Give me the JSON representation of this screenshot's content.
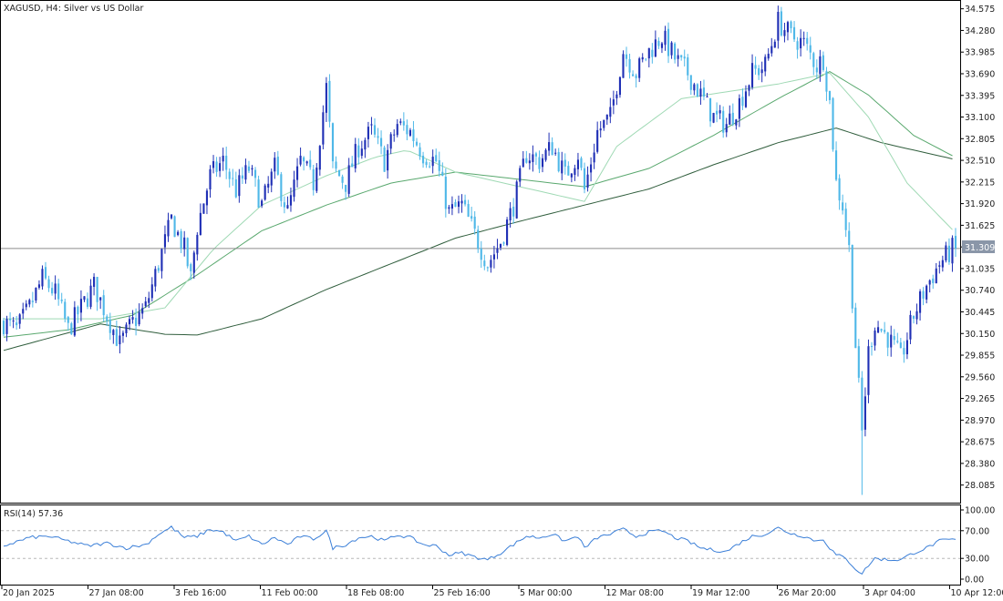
{
  "chart_data": [
    {
      "type": "candlestick",
      "title": "XAGUSD, H4:  Silver vs US Dollar",
      "current_price": "31.309",
      "y_ticks": [
        "34.575",
        "34.280",
        "33.985",
        "33.690",
        "33.395",
        "33.100",
        "32.805",
        "32.510",
        "32.215",
        "31.920",
        "31.625",
        "31.330",
        "31.035",
        "30.740",
        "30.445",
        "30.150",
        "29.855",
        "29.560",
        "29.265",
        "28.970",
        "28.675",
        "28.380",
        "28.085"
      ],
      "ylim": [
        27.87,
        34.67
      ],
      "x_labels": [
        "20 Jan 2025",
        "27 Jan 08:00",
        "3 Feb 16:00",
        "11 Feb 00:00",
        "18 Feb 08:00",
        "25 Feb 16:00",
        "5 Mar 00:00",
        "12 Mar 08:00",
        "19 Mar 12:00",
        "26 Mar 20:00",
        "3 Apr 04:00",
        "10 Apr 12:00"
      ],
      "colors": {
        "up": "#1f2fb5",
        "down": "#4fb8e8",
        "ma_fast": "#9fd9b4",
        "ma_mid": "#59a86e",
        "ma_slow": "#2f5d3c",
        "price_line": "#8c8c8c"
      },
      "close_path": [
        [
          0,
          30.3
        ],
        [
          4,
          30.2
        ],
        [
          8,
          30.5
        ],
        [
          12,
          30.9
        ],
        [
          16,
          30.7
        ],
        [
          20,
          30.2
        ],
        [
          24,
          30.5
        ],
        [
          28,
          30.8
        ],
        [
          32,
          30.4
        ],
        [
          36,
          30.0
        ],
        [
          40,
          30.3
        ],
        [
          44,
          30.5
        ],
        [
          48,
          31.1
        ],
        [
          52,
          31.7
        ],
        [
          56,
          31.3
        ],
        [
          58,
          30.9
        ],
        [
          60,
          31.6
        ],
        [
          64,
          32.3
        ],
        [
          68,
          32.5
        ],
        [
          72,
          32.1
        ],
        [
          76,
          32.4
        ],
        [
          80,
          31.9
        ],
        [
          84,
          32.4
        ],
        [
          88,
          31.8
        ],
        [
          92,
          32.5
        ],
        [
          96,
          32.2
        ],
        [
          100,
          33.5
        ],
        [
          102,
          32.4
        ],
        [
          106,
          32.2
        ],
        [
          110,
          32.7
        ],
        [
          114,
          32.9
        ],
        [
          118,
          32.5
        ],
        [
          122,
          33.0
        ],
        [
          126,
          32.9
        ],
        [
          130,
          32.6
        ],
        [
          134,
          32.5
        ],
        [
          138,
          31.8
        ],
        [
          142,
          31.9
        ],
        [
          146,
          31.5
        ],
        [
          150,
          31.1
        ],
        [
          154,
          31.4
        ],
        [
          158,
          31.9
        ],
        [
          162,
          32.6
        ],
        [
          166,
          32.5
        ],
        [
          170,
          32.7
        ],
        [
          174,
          32.3
        ],
        [
          178,
          32.6
        ],
        [
          180,
          32.1
        ],
        [
          184,
          32.9
        ],
        [
          188,
          33.1
        ],
        [
          192,
          34.0
        ],
        [
          196,
          33.7
        ],
        [
          200,
          34.0
        ],
        [
          204,
          34.2
        ],
        [
          208,
          33.9
        ],
        [
          212,
          33.7
        ],
        [
          216,
          33.4
        ],
        [
          220,
          33.1
        ],
        [
          224,
          33.0
        ],
        [
          228,
          33.3
        ],
        [
          232,
          33.7
        ],
        [
          236,
          33.8
        ],
        [
          240,
          34.4
        ],
        [
          244,
          34.2
        ],
        [
          248,
          34.1
        ],
        [
          252,
          33.8
        ],
        [
          254,
          33.9
        ],
        [
          256,
          33.3
        ],
        [
          258,
          32.2
        ],
        [
          260,
          31.9
        ],
        [
          262,
          31.3
        ],
        [
          264,
          30.0
        ],
        [
          266,
          28.8
        ],
        [
          268,
          29.9
        ],
        [
          270,
          30.3
        ],
        [
          274,
          30.1
        ],
        [
          278,
          29.8
        ],
        [
          282,
          30.4
        ],
        [
          286,
          30.8
        ],
        [
          290,
          31.1
        ],
        [
          294,
          31.3
        ]
      ],
      "n_bars": 296,
      "extremes": {
        "high": 34.6,
        "low": 27.95
      },
      "moving_averages": [
        {
          "key": "ma_slow",
          "points": [
            [
              0,
              29.92
            ],
            [
              30,
              30.28
            ],
            [
              50,
              30.14
            ],
            [
              60,
              30.13
            ],
            [
              80,
              30.35
            ],
            [
              100,
              30.75
            ],
            [
              120,
              31.1
            ],
            [
              140,
              31.45
            ],
            [
              160,
              31.68
            ],
            [
              180,
              31.9
            ],
            [
              200,
              32.12
            ],
            [
              220,
              32.45
            ],
            [
              240,
              32.75
            ],
            [
              258,
              32.95
            ],
            [
              272,
              32.75
            ],
            [
              295,
              32.52
            ]
          ]
        },
        {
          "key": "ma_mid",
          "points": [
            [
              0,
              30.1
            ],
            [
              20,
              30.2
            ],
            [
              40,
              30.4
            ],
            [
              60,
              30.95
            ],
            [
              80,
              31.55
            ],
            [
              100,
              31.9
            ],
            [
              120,
              32.2
            ],
            [
              140,
              32.35
            ],
            [
              160,
              32.25
            ],
            [
              180,
              32.15
            ],
            [
              200,
              32.4
            ],
            [
              220,
              32.85
            ],
            [
              240,
              33.35
            ],
            [
              256,
              33.72
            ],
            [
              268,
              33.4
            ],
            [
              282,
              32.85
            ],
            [
              295,
              32.55
            ]
          ]
        },
        {
          "key": "ma_fast",
          "points": [
            [
              0,
              30.35
            ],
            [
              30,
              30.35
            ],
            [
              50,
              30.5
            ],
            [
              65,
              31.3
            ],
            [
              80,
              31.9
            ],
            [
              100,
              32.3
            ],
            [
              115,
              32.55
            ],
            [
              125,
              32.65
            ],
            [
              140,
              32.35
            ],
            [
              155,
              32.2
            ],
            [
              165,
              32.1
            ],
            [
              180,
              31.95
            ],
            [
              190,
              32.7
            ],
            [
              210,
              33.35
            ],
            [
              225,
              33.45
            ],
            [
              240,
              33.55
            ],
            [
              256,
              33.7
            ],
            [
              268,
              33.1
            ],
            [
              280,
              32.2
            ],
            [
              295,
              31.52
            ]
          ]
        }
      ]
    },
    {
      "type": "line",
      "title": "RSI(14) 57.36",
      "y_ticks": [
        "100.00",
        "70.00",
        "30.00",
        "0.00"
      ],
      "ylim": [
        0,
        100
      ],
      "levels": [
        70,
        30
      ],
      "color": "#3b7fd8",
      "points": [
        [
          0,
          48
        ],
        [
          8,
          60
        ],
        [
          14,
          62
        ],
        [
          20,
          55
        ],
        [
          26,
          48
        ],
        [
          32,
          52
        ],
        [
          38,
          45
        ],
        [
          44,
          50
        ],
        [
          48,
          65
        ],
        [
          52,
          75
        ],
        [
          56,
          60
        ],
        [
          60,
          62
        ],
        [
          64,
          72
        ],
        [
          68,
          68
        ],
        [
          72,
          55
        ],
        [
          76,
          62
        ],
        [
          80,
          50
        ],
        [
          84,
          60
        ],
        [
          88,
          50
        ],
        [
          92,
          62
        ],
        [
          96,
          58
        ],
        [
          100,
          70
        ],
        [
          102,
          45
        ],
        [
          106,
          50
        ],
        [
          110,
          60
        ],
        [
          114,
          62
        ],
        [
          118,
          55
        ],
        [
          122,
          64
        ],
        [
          126,
          60
        ],
        [
          130,
          50
        ],
        [
          134,
          48
        ],
        [
          138,
          35
        ],
        [
          142,
          38
        ],
        [
          146,
          32
        ],
        [
          150,
          28
        ],
        [
          154,
          38
        ],
        [
          158,
          50
        ],
        [
          162,
          62
        ],
        [
          166,
          60
        ],
        [
          170,
          65
        ],
        [
          174,
          55
        ],
        [
          178,
          62
        ],
        [
          180,
          45
        ],
        [
          184,
          60
        ],
        [
          188,
          65
        ],
        [
          192,
          72
        ],
        [
          196,
          62
        ],
        [
          200,
          68
        ],
        [
          204,
          70
        ],
        [
          208,
          60
        ],
        [
          212,
          55
        ],
        [
          216,
          45
        ],
        [
          220,
          42
        ],
        [
          224,
          40
        ],
        [
          228,
          52
        ],
        [
          232,
          62
        ],
        [
          236,
          65
        ],
        [
          240,
          74
        ],
        [
          244,
          66
        ],
        [
          248,
          62
        ],
        [
          252,
          55
        ],
        [
          254,
          58
        ],
        [
          256,
          45
        ],
        [
          258,
          35
        ],
        [
          260,
          32
        ],
        [
          262,
          25
        ],
        [
          264,
          15
        ],
        [
          266,
          8
        ],
        [
          268,
          20
        ],
        [
          270,
          30
        ],
        [
          274,
          28
        ],
        [
          278,
          28
        ],
        [
          282,
          38
        ],
        [
          286,
          45
        ],
        [
          290,
          55
        ],
        [
          294,
          57.36
        ]
      ]
    }
  ]
}
